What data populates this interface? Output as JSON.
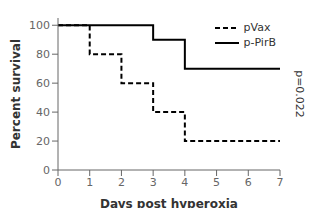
{
  "chart_data": {
    "type": "line",
    "xlabel": "Days post hyperoxia",
    "ylabel": "Percent survival",
    "annotations": [
      "p=0.022"
    ],
    "series": [
      {
        "name": "pVax",
        "color": "black",
        "line_style": "dashed",
        "x": [
          0,
          1,
          2,
          3,
          4,
          7
        ],
        "values": [
          100,
          80,
          60,
          40,
          20,
          20
        ]
      },
      {
        "name": "p-PirB",
        "color": "black",
        "line_style": "solid",
        "x": [
          0,
          2,
          3,
          4,
          7
        ],
        "values": [
          100,
          100,
          90,
          70,
          70
        ]
      }
    ],
    "xlim": [
      0,
      7
    ],
    "ylim": [
      0,
      105
    ],
    "xticks": [
      0,
      1,
      2,
      3,
      4,
      5,
      6,
      7
    ],
    "yticks": [
      0,
      20,
      40,
      60,
      80,
      100
    ],
    "legend": "upper right",
    "grid": false
  }
}
